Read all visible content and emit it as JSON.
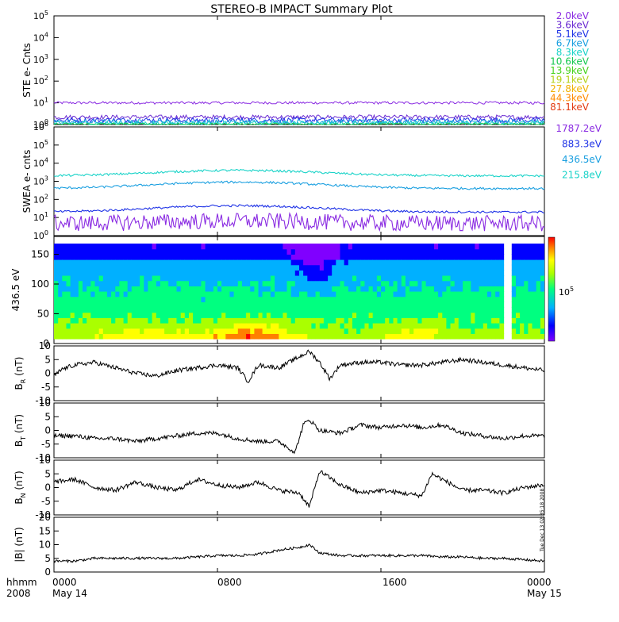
{
  "title": "STEREO-B IMPACT Summary Plot",
  "timestamp_stamp": "Tue Dec 13 02:35:18 2008",
  "time_axis": {
    "row1_labels": [
      "hhmm",
      "0000",
      "0800",
      "1600",
      "0000"
    ],
    "row2_labels": [
      "2008",
      "May 14",
      "May 15"
    ],
    "tick_hours": [
      0,
      8,
      16,
      24
    ]
  },
  "colors": {
    "ste": [
      "#8a2be2",
      "#6a2ad2",
      "#1e32e6",
      "#1a9fe0",
      "#19d3c8",
      "#16c850",
      "#45d21a",
      "#b6d11a",
      "#f0b000",
      "#ff8a00",
      "#e23a10"
    ],
    "swea": [
      "#8a2be2",
      "#1e32e6",
      "#1a9fe0",
      "#19d3c8"
    ],
    "spectro_colorbar": [
      "#8000ff",
      "#0000ff",
      "#00b0ff",
      "#00ff80",
      "#aaff00",
      "#ffff00",
      "#ff8000",
      "#ff0000"
    ]
  },
  "chart_data": [
    {
      "type": "line",
      "panel": "ste",
      "ylabel": "STE e- Cnts",
      "yscale": "log",
      "ylim": [
        1,
        100000
      ],
      "ytick_exponents": [
        "0",
        "1",
        "2",
        "3",
        "4",
        "5"
      ],
      "legend": [
        "2.0keV",
        "3.6keV",
        "5.1keV",
        "6.7keV",
        "8.3keV",
        "10.6keV",
        "13.9keV",
        "19.1keV",
        "27.8keV",
        "44.3keV",
        "81.1keV"
      ],
      "series": [
        {
          "name": "2.0keV",
          "level": 10,
          "noise": 0.06
        },
        {
          "name": "3.6keV",
          "level": 2.2,
          "noise": 0.1
        },
        {
          "name": "5.1keV",
          "level": 1.6,
          "noise": 0.12
        },
        {
          "name": "6.7keV",
          "level": 1.3,
          "noise": 0.12
        },
        {
          "name": "8.3keV",
          "level": 1.15,
          "noise": 0.1
        },
        {
          "name": "10.6keV",
          "level": 1.05,
          "noise": 0.05
        }
      ]
    },
    {
      "type": "line",
      "panel": "swea",
      "ylabel": "SWEA e- cnts",
      "yscale": "log",
      "ylim": [
        1,
        1000000
      ],
      "ytick_exponents": [
        "0",
        "1",
        "2",
        "3",
        "4",
        "5",
        "6"
      ],
      "legend": [
        "1787.2eV",
        "883.3eV",
        "436.5eV",
        "215.8eV"
      ],
      "series": [
        {
          "name": "215.8eV",
          "level": 2000,
          "peak": 4000
        },
        {
          "name": "436.5eV",
          "level": 400,
          "peak": 900
        },
        {
          "name": "883.3eV",
          "level": 20,
          "peak": 45
        },
        {
          "name": "1787.2eV",
          "level": 3,
          "peak": 4
        }
      ]
    },
    {
      "type": "heatmap",
      "panel": "spectrogram",
      "ylabel": "436.5 eV",
      "ylim": [
        0,
        180
      ],
      "yticks": [
        "0",
        "50",
        "100",
        "150"
      ],
      "colorbar_label": "10",
      "colorbar_exponent": "5"
    },
    {
      "type": "line",
      "panel": "br",
      "ylabel": "B",
      "ylabel_sub": "R",
      "ylabel_unit": "(nT)",
      "ylim": [
        -10,
        10
      ],
      "yticks": [
        "10",
        "5",
        "0",
        "-5",
        "-10"
      ],
      "keypoints": [
        [
          0,
          -1
        ],
        [
          0.4,
          1.5
        ],
        [
          1,
          3
        ],
        [
          2,
          4
        ],
        [
          3,
          2
        ],
        [
          4,
          0
        ],
        [
          5,
          -1
        ],
        [
          6,
          1
        ],
        [
          7,
          2
        ],
        [
          8,
          3
        ],
        [
          9,
          2
        ],
        [
          9.5,
          -3
        ],
        [
          10,
          3
        ],
        [
          11,
          2
        ],
        [
          12,
          6
        ],
        [
          12.5,
          8
        ],
        [
          13,
          4
        ],
        [
          13.5,
          -2
        ],
        [
          14,
          3
        ],
        [
          15,
          4
        ],
        [
          16,
          4
        ],
        [
          17,
          3
        ],
        [
          18,
          3
        ],
        [
          19,
          4
        ],
        [
          20,
          5
        ],
        [
          21,
          4
        ],
        [
          22,
          3
        ],
        [
          23,
          2
        ],
        [
          24,
          1
        ]
      ]
    },
    {
      "type": "line",
      "panel": "bt",
      "ylabel": "B",
      "ylabel_sub": "T",
      "ylabel_unit": "(nT)",
      "ylim": [
        -10,
        10
      ],
      "yticks": [
        "10",
        "5",
        "0",
        "-5",
        "-10"
      ],
      "keypoints": [
        [
          0,
          -2
        ],
        [
          1,
          -2
        ],
        [
          2,
          -3
        ],
        [
          3,
          -3
        ],
        [
          4,
          -4
        ],
        [
          5,
          -3
        ],
        [
          6,
          -2
        ],
        [
          7,
          -1
        ],
        [
          8,
          -1
        ],
        [
          9,
          -3
        ],
        [
          10,
          -4
        ],
        [
          11,
          -4
        ],
        [
          11.8,
          -8
        ],
        [
          12.2,
          2
        ],
        [
          12.5,
          4
        ],
        [
          13,
          0
        ],
        [
          14,
          -1
        ],
        [
          15,
          2
        ],
        [
          16,
          1
        ],
        [
          17,
          2
        ],
        [
          18,
          1
        ],
        [
          19,
          2
        ],
        [
          20,
          -1
        ],
        [
          21,
          -2
        ],
        [
          22,
          -3
        ],
        [
          23,
          -2
        ],
        [
          24,
          -2
        ]
      ]
    },
    {
      "type": "line",
      "panel": "bn",
      "ylabel": "B",
      "ylabel_sub": "N",
      "ylabel_unit": "(nT)",
      "ylim": [
        -10,
        10
      ],
      "yticks": [
        "10",
        "5",
        "0",
        "-5",
        "-10"
      ],
      "keypoints": [
        [
          0,
          2
        ],
        [
          1,
          3
        ],
        [
          2,
          0
        ],
        [
          3,
          -1
        ],
        [
          4,
          2
        ],
        [
          5,
          0
        ],
        [
          6,
          -1
        ],
        [
          7,
          3
        ],
        [
          8,
          1
        ],
        [
          9,
          0
        ],
        [
          10,
          2
        ],
        [
          11,
          -1
        ],
        [
          12,
          -2
        ],
        [
          12.5,
          -7
        ],
        [
          13,
          6
        ],
        [
          14,
          1
        ],
        [
          15,
          -2
        ],
        [
          16,
          -1
        ],
        [
          17,
          -2
        ],
        [
          18,
          -3
        ],
        [
          18.5,
          5
        ],
        [
          19,
          3
        ],
        [
          20,
          -1
        ],
        [
          21,
          -1
        ],
        [
          22,
          -2
        ],
        [
          23,
          0
        ],
        [
          24,
          1
        ]
      ]
    },
    {
      "type": "line",
      "panel": "bmag",
      "ylabel": "|B| (nT)",
      "ylim": [
        0,
        20
      ],
      "yticks": [
        "20",
        "15",
        "10",
        "5",
        "0"
      ],
      "keypoints": [
        [
          0,
          4
        ],
        [
          1,
          4
        ],
        [
          2,
          5
        ],
        [
          3,
          5
        ],
        [
          4,
          5
        ],
        [
          5,
          5
        ],
        [
          6,
          5
        ],
        [
          7,
          5.5
        ],
        [
          8,
          6
        ],
        [
          9,
          6
        ],
        [
          10,
          6.5
        ],
        [
          11,
          8
        ],
        [
          12,
          9
        ],
        [
          12.5,
          10
        ],
        [
          13,
          7
        ],
        [
          14,
          6
        ],
        [
          15,
          6
        ],
        [
          16,
          6
        ],
        [
          17,
          6
        ],
        [
          18,
          6
        ],
        [
          19,
          5.5
        ],
        [
          20,
          5.5
        ],
        [
          21,
          5
        ],
        [
          22,
          5
        ],
        [
          23,
          4.5
        ],
        [
          24,
          4
        ]
      ]
    }
  ]
}
